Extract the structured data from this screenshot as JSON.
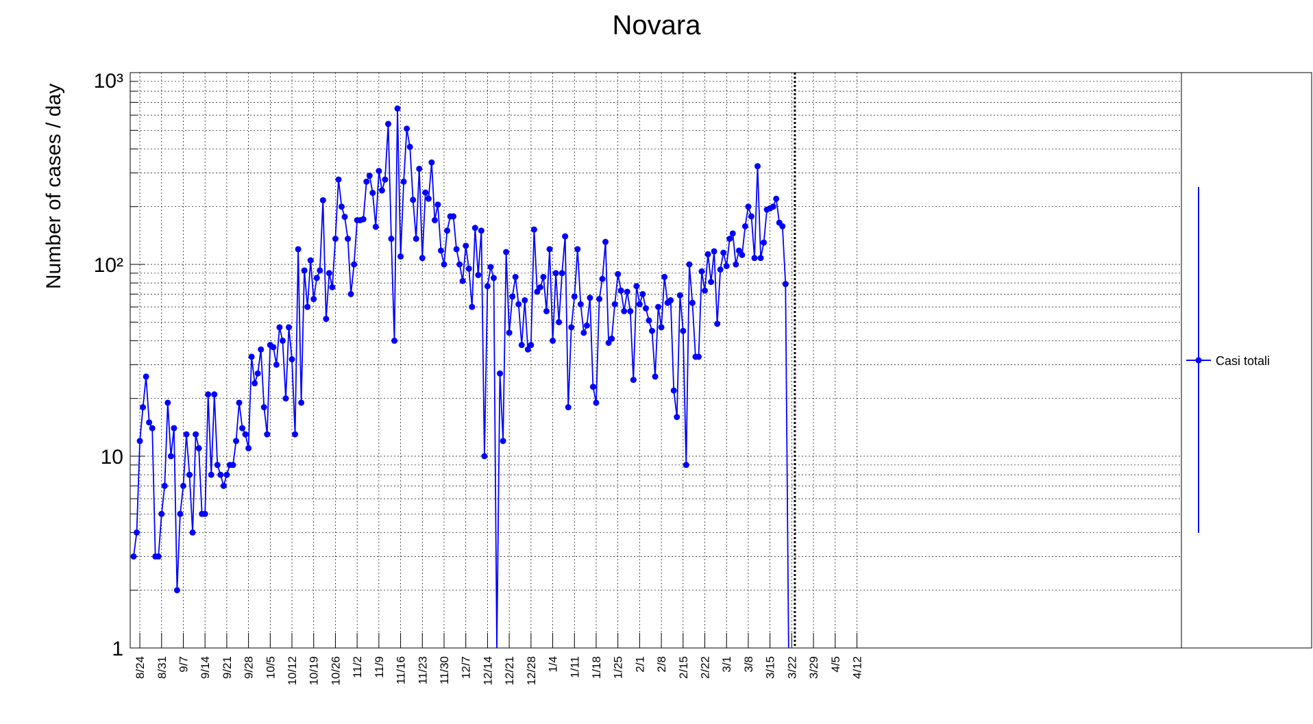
{
  "chart_data": {
    "type": "line",
    "title": "Novara",
    "ylabel": "Number of cases / day",
    "xlabel": "",
    "y_scale": "log",
    "ylim": [
      1,
      1000
    ],
    "x_range": [
      "8/22",
      "4/19"
    ],
    "grid": true,
    "legend_position": "right",
    "y_tick_labels": [
      "1",
      "10",
      "10²",
      "10³"
    ],
    "x_tick_labels": [
      "8/24",
      "8/31",
      "9/7",
      "9/14",
      "9/21",
      "9/28",
      "10/5",
      "10/12",
      "10/19",
      "10/26",
      "11/2",
      "11/9",
      "11/16",
      "11/23",
      "11/30",
      "12/7",
      "12/14",
      "12/21",
      "12/28",
      "1/4",
      "1/11",
      "1/18",
      "1/25",
      "2/1",
      "2/8",
      "2/15",
      "2/22",
      "3/1",
      "3/8",
      "3/15",
      "3/22",
      "3/29",
      "4/5",
      "4/12"
    ],
    "vertical_marker": "3/23",
    "series": [
      {
        "name": "Casi totali",
        "color": "#0000ff",
        "x_start": "8/22",
        "x_step_days": 1,
        "values": [
          3,
          4,
          12,
          18,
          26,
          15,
          14,
          3,
          3,
          5,
          7,
          19,
          10,
          14,
          2,
          5,
          7,
          13,
          8,
          4,
          13,
          11,
          5,
          5,
          21,
          8,
          21,
          9,
          8,
          7,
          8,
          9,
          9,
          12,
          19,
          14,
          13,
          11,
          33,
          24,
          27,
          36,
          18,
          13,
          38,
          37,
          30,
          47,
          40,
          20,
          47,
          32,
          13,
          120,
          19,
          93,
          60,
          105,
          66,
          85,
          93,
          216,
          52,
          90,
          76,
          136,
          277,
          200,
          177,
          136,
          70,
          100,
          170,
          170,
          172,
          270,
          290,
          236,
          157,
          307,
          243,
          277,
          540,
          136,
          40,
          650,
          110,
          270,
          510,
          410,
          217,
          136,
          315,
          108,
          237,
          220,
          340,
          170,
          205,
          118,
          100,
          150,
          178,
          178,
          120,
          100,
          82,
          125,
          95,
          60,
          155,
          88,
          150,
          10,
          77,
          97,
          85,
          0.5,
          27,
          12,
          116,
          44,
          68,
          86,
          62,
          38,
          65,
          36,
          38,
          152,
          72,
          76,
          86,
          57,
          120,
          40,
          90,
          50,
          90,
          140,
          18,
          47,
          68,
          120,
          62,
          44,
          48,
          67,
          23,
          19,
          66,
          84,
          131,
          39,
          41,
          62,
          89,
          73,
          57,
          72,
          57,
          25,
          77,
          62,
          70,
          59,
          51,
          45,
          26,
          60,
          47,
          86,
          63,
          65,
          22,
          16,
          69,
          45,
          9,
          100,
          63,
          33,
          33,
          92,
          73,
          113,
          81,
          117,
          49,
          94,
          115,
          98,
          136,
          145,
          100,
          118,
          112,
          158,
          200,
          178,
          108,
          325,
          108,
          130,
          193,
          196,
          200,
          220,
          165,
          158,
          79,
          0.5
        ]
      }
    ]
  }
}
